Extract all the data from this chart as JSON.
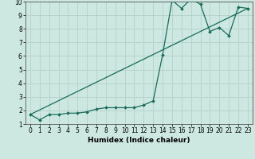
{
  "xlabel": "Humidex (Indice chaleur)",
  "bg_color": "#cce8e0",
  "grid_color": "#b8d4cc",
  "line_color": "#1a6b5a",
  "xlim": [
    -0.5,
    23.5
  ],
  "ylim": [
    1,
    10
  ],
  "xticks": [
    0,
    1,
    2,
    3,
    4,
    5,
    6,
    7,
    8,
    9,
    10,
    11,
    12,
    13,
    14,
    15,
    16,
    17,
    18,
    19,
    20,
    21,
    22,
    23
  ],
  "yticks": [
    1,
    2,
    3,
    4,
    5,
    6,
    7,
    8,
    9,
    10
  ],
  "data_x": [
    0,
    1,
    2,
    3,
    4,
    5,
    6,
    7,
    8,
    9,
    10,
    11,
    12,
    13,
    14,
    15,
    16,
    17,
    18,
    19,
    20,
    21,
    22,
    23
  ],
  "data_y": [
    1.7,
    1.3,
    1.7,
    1.7,
    1.8,
    1.8,
    1.9,
    2.1,
    2.2,
    2.2,
    2.2,
    2.2,
    2.4,
    2.7,
    6.1,
    10.1,
    9.5,
    10.2,
    9.8,
    7.8,
    8.1,
    7.5,
    9.6,
    9.5
  ],
  "trend_x": [
    0,
    23
  ],
  "trend_y": [
    1.7,
    9.5
  ],
  "spine_color": "#555555",
  "tick_fontsize": 5.5,
  "xlabel_fontsize": 6.5
}
